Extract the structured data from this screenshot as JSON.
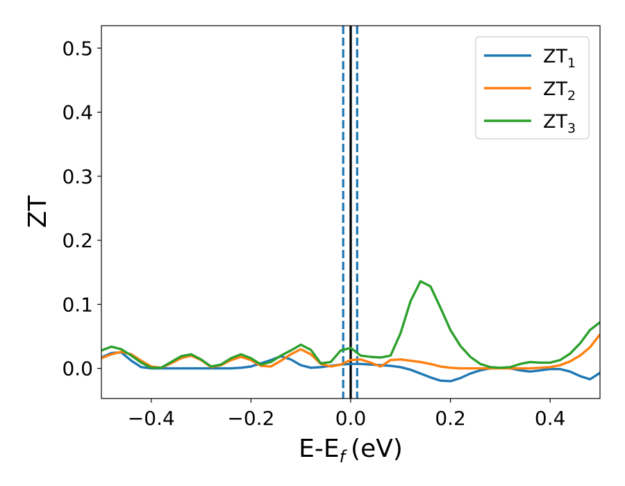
{
  "chart_data": {
    "type": "line",
    "xlabel": "E-E",
    "xlabel_sub": "f",
    "xlabel_unit": "(eV)",
    "ylabel": "ZT",
    "xlim": [
      -0.5,
      0.5
    ],
    "ylim": [
      -0.047,
      0.535
    ],
    "xticks": [
      -0.4,
      -0.2,
      0.0,
      0.2,
      0.4
    ],
    "xtick_labels": [
      "−0.4",
      "−0.2",
      "0.0",
      "0.2",
      "0.4"
    ],
    "yticks": [
      0.0,
      0.1,
      0.2,
      0.3,
      0.4,
      0.5
    ],
    "ytick_labels": [
      "0.0",
      "0.1",
      "0.2",
      "0.3",
      "0.4",
      "0.5"
    ],
    "grid": false,
    "legend_position": "top-right",
    "vlines": [
      {
        "x": -0.015,
        "style": "dashed",
        "color": "#1f77b4"
      },
      {
        "x": 0.0,
        "style": "solid",
        "color": "#1f77b4"
      },
      {
        "x": 0.0,
        "style": "solid",
        "color": "#000000"
      },
      {
        "x": 0.013,
        "style": "dashed",
        "color": "#1f77b4"
      }
    ],
    "series": [
      {
        "name": "ZT",
        "subscript": "1",
        "color": "#1f77b4",
        "x": [
          -0.5,
          -0.48,
          -0.46,
          -0.44,
          -0.42,
          -0.4,
          -0.38,
          -0.36,
          -0.34,
          -0.32,
          -0.3,
          -0.28,
          -0.26,
          -0.24,
          -0.22,
          -0.2,
          -0.18,
          -0.16,
          -0.14,
          -0.12,
          -0.1,
          -0.08,
          -0.06,
          -0.04,
          -0.02,
          0.0,
          0.02,
          0.04,
          0.06,
          0.08,
          0.1,
          0.12,
          0.14,
          0.16,
          0.18,
          0.2,
          0.22,
          0.24,
          0.26,
          0.28,
          0.3,
          0.32,
          0.34,
          0.36,
          0.38,
          0.4,
          0.42,
          0.44,
          0.46,
          0.48,
          0.5
        ],
        "y": [
          0.017,
          0.024,
          0.025,
          0.012,
          0.002,
          0.0,
          0.0,
          0.0,
          0.0,
          0.0,
          0.0,
          0.0,
          0.0,
          0.0,
          0.001,
          0.003,
          0.008,
          0.013,
          0.019,
          0.014,
          0.005,
          0.001,
          0.002,
          0.004,
          0.006,
          0.007,
          0.007,
          0.006,
          0.005,
          0.004,
          0.002,
          -0.002,
          -0.008,
          -0.014,
          -0.019,
          -0.02,
          -0.015,
          -0.008,
          -0.003,
          0.0,
          0.001,
          0.0,
          -0.003,
          -0.005,
          -0.003,
          -0.001,
          -0.001,
          -0.005,
          -0.012,
          -0.017,
          -0.007
        ]
      },
      {
        "name": "ZT",
        "subscript": "2",
        "color": "#ff7f0e",
        "x": [
          -0.5,
          -0.48,
          -0.46,
          -0.44,
          -0.42,
          -0.4,
          -0.38,
          -0.36,
          -0.34,
          -0.32,
          -0.3,
          -0.28,
          -0.26,
          -0.24,
          -0.22,
          -0.2,
          -0.18,
          -0.16,
          -0.14,
          -0.12,
          -0.1,
          -0.08,
          -0.06,
          -0.04,
          -0.02,
          0.0,
          0.02,
          0.04,
          0.06,
          0.08,
          0.1,
          0.12,
          0.14,
          0.16,
          0.18,
          0.2,
          0.22,
          0.24,
          0.26,
          0.28,
          0.3,
          0.32,
          0.34,
          0.36,
          0.38,
          0.4,
          0.42,
          0.44,
          0.46,
          0.48,
          0.5
        ],
        "y": [
          0.016,
          0.022,
          0.026,
          0.022,
          0.012,
          0.003,
          0.001,
          0.008,
          0.016,
          0.02,
          0.013,
          0.002,
          0.005,
          0.013,
          0.018,
          0.013,
          0.004,
          0.003,
          0.012,
          0.022,
          0.03,
          0.022,
          0.007,
          0.003,
          0.006,
          0.013,
          0.014,
          0.009,
          0.003,
          0.013,
          0.014,
          0.012,
          0.01,
          0.007,
          0.003,
          0.001,
          0.0,
          0.0,
          0.0,
          0.0,
          0.0,
          0.0,
          0.0,
          0.0,
          0.001,
          0.002,
          0.005,
          0.011,
          0.02,
          0.033,
          0.053
        ]
      },
      {
        "name": "ZT",
        "subscript": "3",
        "color": "#2ca02c",
        "x": [
          -0.5,
          -0.48,
          -0.46,
          -0.44,
          -0.42,
          -0.4,
          -0.38,
          -0.36,
          -0.34,
          -0.32,
          -0.3,
          -0.28,
          -0.26,
          -0.24,
          -0.22,
          -0.2,
          -0.18,
          -0.16,
          -0.14,
          -0.12,
          -0.1,
          -0.08,
          -0.06,
          -0.04,
          -0.02,
          0.0,
          0.02,
          0.04,
          0.06,
          0.08,
          0.1,
          0.12,
          0.14,
          0.16,
          0.18,
          0.2,
          0.22,
          0.24,
          0.26,
          0.28,
          0.3,
          0.32,
          0.34,
          0.36,
          0.38,
          0.4,
          0.42,
          0.44,
          0.46,
          0.48,
          0.5
        ],
        "y": [
          0.028,
          0.034,
          0.03,
          0.02,
          0.009,
          0.001,
          0.001,
          0.01,
          0.019,
          0.022,
          0.014,
          0.003,
          0.006,
          0.016,
          0.022,
          0.016,
          0.006,
          0.01,
          0.02,
          0.028,
          0.037,
          0.029,
          0.008,
          0.01,
          0.028,
          0.032,
          0.02,
          0.018,
          0.017,
          0.02,
          0.055,
          0.105,
          0.136,
          0.128,
          0.095,
          0.06,
          0.035,
          0.018,
          0.007,
          0.002,
          0.001,
          0.002,
          0.007,
          0.01,
          0.009,
          0.009,
          0.013,
          0.023,
          0.039,
          0.06,
          0.072
        ]
      }
    ]
  }
}
